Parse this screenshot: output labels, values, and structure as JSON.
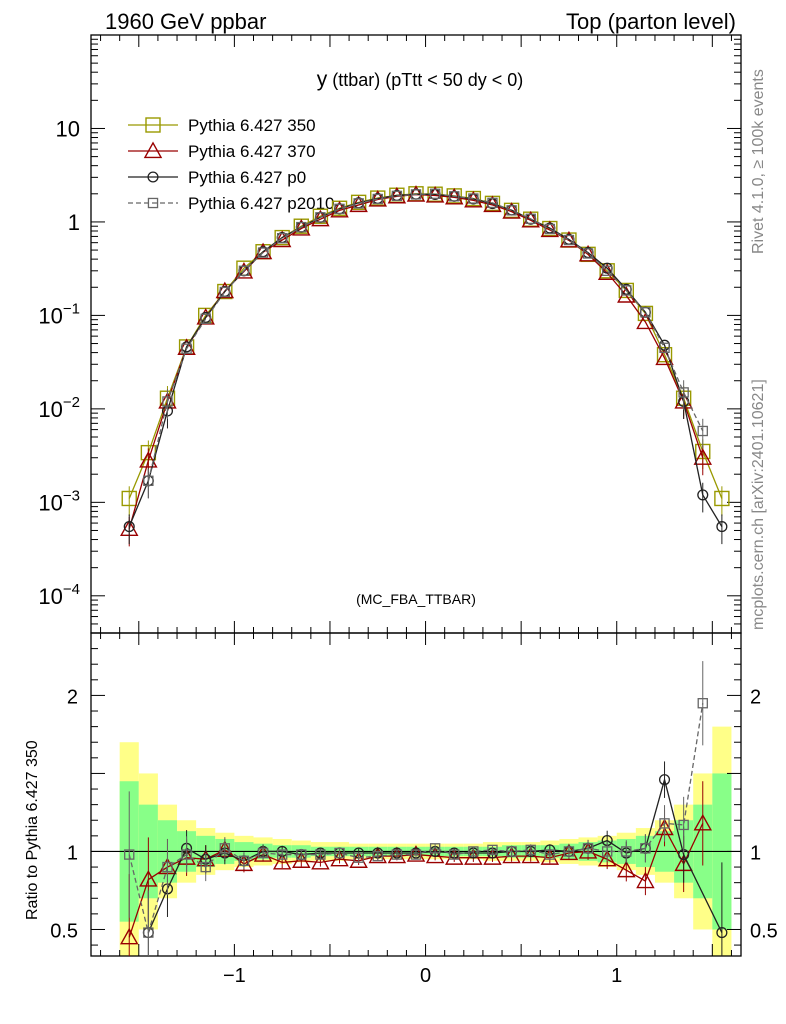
{
  "header": {
    "left": "1960 GeV ppbar",
    "right": "Top (parton level)"
  },
  "side": {
    "rivet": "Rivet 4.1.0, ≥ 100k events",
    "mcplots": "mcplots.cern.ch [arXiv:2401.10621]"
  },
  "chart_data": {
    "type": "line",
    "title": "y (ttbar) (pTtt < 50 dy < 0)",
    "title_main": "y",
    "title_sub": "(ttbar) (pTtt < 50 dy < 0)",
    "watermark": "(MC_FBA_TTBAR)",
    "xlabel": "",
    "ylabel": "",
    "ratio_ylabel": "Ratio to Pythia 6.427 350",
    "xlim": [
      -1.75,
      1.65
    ],
    "ylim_log": [
      4e-05,
      100
    ],
    "ratio_ylim": [
      0.33,
      2.4
    ],
    "x_ticks": [
      {
        "v": -1,
        "label": "−1"
      },
      {
        "v": 0,
        "label": "0"
      },
      {
        "v": 1,
        "label": "1"
      }
    ],
    "y_ticks": [
      {
        "v": 10,
        "label": "10"
      },
      {
        "v": 1,
        "label": "1"
      },
      {
        "v": 0.1,
        "label": "10",
        "exp": "−1"
      },
      {
        "v": 0.01,
        "label": "10",
        "exp": "−2"
      },
      {
        "v": 0.001,
        "label": "10",
        "exp": "−3"
      },
      {
        "v": 0.0001,
        "label": "10",
        "exp": "−4"
      }
    ],
    "ratio_ticks": [
      {
        "v": 2,
        "label": "2"
      },
      {
        "v": 1,
        "label": "1"
      },
      {
        "v": 0.5,
        "label": "0.5"
      }
    ],
    "x": [
      -1.55,
      -1.45,
      -1.35,
      -1.25,
      -1.15,
      -1.05,
      -0.95,
      -0.85,
      -0.75,
      -0.65,
      -0.55,
      -0.45,
      -0.35,
      -0.25,
      -0.15,
      -0.05,
      0.05,
      0.15,
      0.25,
      0.35,
      0.45,
      0.55,
      0.65,
      0.75,
      0.85,
      0.95,
      1.05,
      1.15,
      1.25,
      1.35,
      1.45,
      1.55
    ],
    "series": [
      {
        "name": "Pythia 6.427 350",
        "color": "#999900",
        "marker": "square",
        "values": [
          0.0011,
          0.0034,
          0.013,
          0.046,
          0.1,
          0.18,
          0.32,
          0.48,
          0.68,
          0.9,
          1.15,
          1.4,
          1.62,
          1.8,
          1.93,
          2.0,
          1.98,
          1.9,
          1.78,
          1.58,
          1.33,
          1.07,
          0.85,
          0.64,
          0.45,
          0.3,
          0.185,
          0.105,
          0.038,
          0.013,
          0.0035,
          0.0011
        ]
      },
      {
        "name": "Pythia 6.427 370",
        "color": "#990000",
        "marker": "triangle",
        "values": [
          0.00052,
          0.0028,
          0.012,
          0.045,
          0.095,
          0.182,
          0.295,
          0.475,
          0.64,
          0.85,
          1.07,
          1.33,
          1.52,
          1.74,
          1.88,
          1.96,
          1.92,
          1.83,
          1.7,
          1.52,
          1.29,
          1.04,
          0.82,
          0.635,
          0.45,
          0.285,
          0.163,
          0.085,
          0.035,
          0.012,
          0.003,
          null
        ],
        "ratio": [
          0.45,
          0.82,
          0.9,
          0.96,
          0.95,
          1.01,
          0.92,
          0.98,
          0.93,
          0.94,
          0.93,
          0.95,
          0.94,
          0.97,
          0.97,
          0.98,
          0.97,
          0.96,
          0.96,
          0.96,
          0.97,
          0.97,
          0.96,
          0.99,
          1.0,
          0.95,
          0.88,
          0.81,
          1.15,
          0.92,
          1.18,
          null
        ]
      },
      {
        "name": "Pythia 6.427 p0",
        "color": "#222222",
        "marker": "circle",
        "values": [
          0.00055,
          0.0017,
          0.0095,
          0.046,
          0.095,
          0.18,
          0.3,
          0.48,
          0.68,
          0.88,
          1.12,
          1.38,
          1.6,
          1.78,
          1.92,
          1.98,
          1.97,
          1.88,
          1.76,
          1.57,
          1.34,
          1.07,
          0.86,
          0.65,
          0.47,
          0.32,
          0.19,
          0.108,
          0.048,
          0.012,
          0.0012,
          0.00055
        ],
        "ratio": [
          null,
          0.48,
          0.76,
          1.02,
          0.95,
          0.99,
          0.94,
          1.0,
          1.0,
          0.98,
          0.99,
          0.99,
          0.99,
          0.99,
          0.99,
          0.99,
          1.0,
          0.99,
          0.99,
          0.99,
          1.0,
          1.0,
          1.01,
          1.0,
          1.02,
          1.07,
          0.99,
          1.02,
          1.46,
          0.98,
          null,
          0.48
        ]
      },
      {
        "name": "Pythia 6.427 p2010",
        "color": "#666666",
        "marker": "square-small",
        "dashed": true,
        "values": [
          null,
          0.0017,
          0.012,
          0.044,
          0.092,
          0.178,
          0.3,
          0.47,
          0.67,
          0.88,
          1.12,
          1.38,
          1.58,
          1.76,
          1.9,
          1.97,
          2.0,
          1.88,
          1.78,
          1.6,
          1.33,
          1.08,
          0.84,
          0.64,
          0.46,
          0.3,
          0.185,
          0.108,
          0.045,
          0.015,
          0.0058,
          null
        ],
        "ratio": [
          0.98,
          0.48,
          0.9,
          0.98,
          0.9,
          1.02,
          0.94,
          0.99,
          0.98,
          0.98,
          0.98,
          0.99,
          0.96,
          0.97,
          0.98,
          0.98,
          1.02,
          0.98,
          1.0,
          1.01,
          1.0,
          1.01,
          0.98,
          1.0,
          1.02,
          1.0,
          1.0,
          1.02,
          1.18,
          1.17,
          1.95,
          null
        ]
      }
    ],
    "band_half_yellow": [
      0.7,
      0.5,
      0.3,
      0.2,
      0.15,
      0.12,
      0.1,
      0.09,
      0.08,
      0.07,
      0.06,
      0.06,
      0.05,
      0.05,
      0.05,
      0.05,
      0.05,
      0.05,
      0.05,
      0.06,
      0.06,
      0.06,
      0.07,
      0.08,
      0.09,
      0.1,
      0.12,
      0.15,
      0.2,
      0.3,
      0.5,
      0.8
    ],
    "band_half_green": [
      0.45,
      0.3,
      0.2,
      0.13,
      0.1,
      0.08,
      0.06,
      0.05,
      0.04,
      0.04,
      0.03,
      0.03,
      0.03,
      0.03,
      0.03,
      0.03,
      0.03,
      0.03,
      0.03,
      0.03,
      0.04,
      0.04,
      0.04,
      0.05,
      0.06,
      0.07,
      0.08,
      0.1,
      0.13,
      0.2,
      0.3,
      0.5
    ],
    "legend": [
      "Pythia 6.427 350",
      "Pythia 6.427 370",
      "Pythia 6.427 p0",
      "Pythia 6.427 p2010"
    ]
  }
}
